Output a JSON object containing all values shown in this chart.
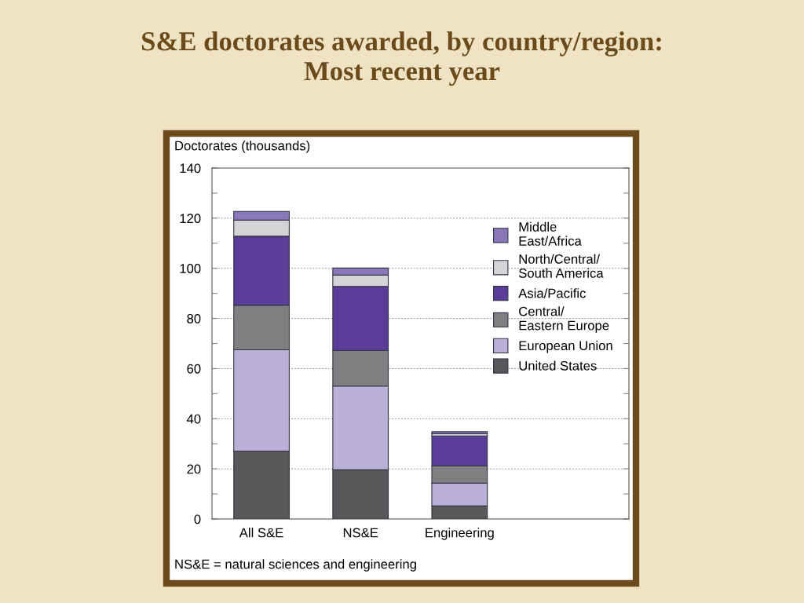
{
  "chart_data": {
    "type": "bar",
    "stacked": true,
    "title": "S&E doctorates awarded, by country/region:\nMost recent year",
    "ylabel": "Doctorates (thousands)",
    "categories": [
      "All S&E",
      "NS&E",
      "Engineering"
    ],
    "series": [
      {
        "name": "United States",
        "color": "#58585a",
        "values": [
          27.1,
          19.6,
          5.2
        ]
      },
      {
        "name": "European Union",
        "color": "#bbb1d8",
        "values": [
          40.4,
          33.4,
          9.1
        ]
      },
      {
        "name": "Central/\nEastern Europe",
        "color": "#808083",
        "values": [
          17.8,
          14.2,
          6.9
        ]
      },
      {
        "name": "Asia/Pacific",
        "color": "#5a3d99",
        "values": [
          27.5,
          25.6,
          11.9
        ]
      },
      {
        "name": "North/Central/\nSouth America",
        "color": "#d4d4d6",
        "values": [
          6.4,
          4.5,
          0.9
        ]
      },
      {
        "name": "Middle\nEast/Africa",
        "color": "#8b78ba",
        "values": [
          3.5,
          2.8,
          0.8
        ]
      }
    ],
    "ylim": [
      0,
      140
    ],
    "yticks": [
      0,
      {
        "value": 10,
        "label": null
      },
      20,
      {
        "value": 30,
        "label": null
      },
      40,
      {
        "value": 50,
        "label": null
      },
      60,
      {
        "value": 70,
        "label": null
      },
      80,
      {
        "value": 90,
        "label": null
      },
      100,
      {
        "value": 110,
        "label": null
      },
      120,
      {
        "value": 130,
        "label": null
      },
      140
    ],
    "grid": "y",
    "legend": "top right",
    "annotations": [
      "NS&E = natural sciences and engineering"
    ]
  }
}
